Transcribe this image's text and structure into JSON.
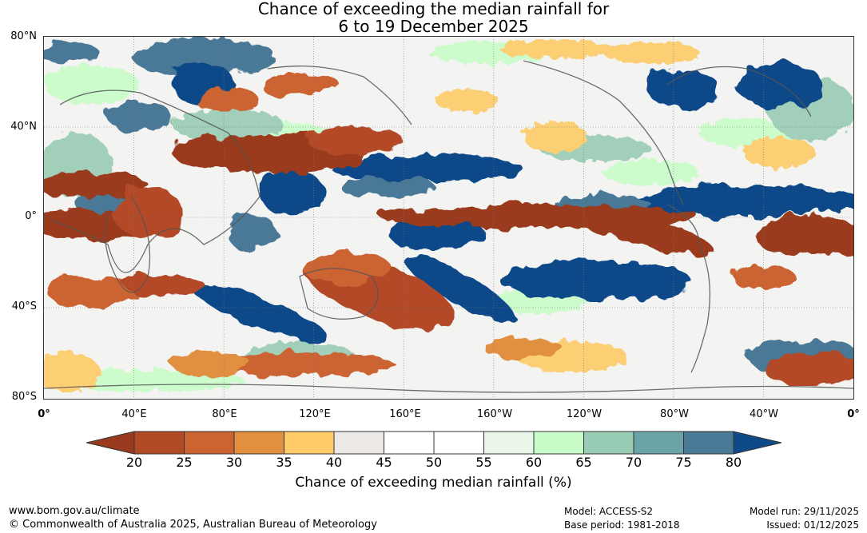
{
  "title_line1": "Chance of exceeding the median rainfall for",
  "title_line2": "6 to 19 December 2025",
  "lat_labels": [
    "80°N",
    "40°N",
    "0°",
    "40°S",
    "80°S"
  ],
  "lon_labels": [
    "0°",
    "40°E",
    "80°E",
    "120°E",
    "160°E",
    "160°W",
    "120°W",
    "80°W",
    "40°W",
    "0°"
  ],
  "colorbar": {
    "ticks": [
      "20",
      "25",
      "30",
      "35",
      "40",
      "45",
      "50",
      "55",
      "60",
      "65",
      "70",
      "75",
      "80"
    ],
    "colors": [
      "#993a1e",
      "#b34a26",
      "#cc6331",
      "#e0903f",
      "#fdcc68",
      "#ece9e6",
      "#ffffff",
      "#ffffff",
      "#e9f6e9",
      "#c8fcc8",
      "#99ccb5",
      "#6aa3a8",
      "#4a7996",
      "#0f4a88"
    ],
    "label": "Chance of exceeding median rainfall (%)"
  },
  "footer": {
    "url": "www.bom.gov.au/climate",
    "copyright": "© Commonwealth of Australia 2025, Australian Bureau of Meteorology",
    "model": "Model: ACCESS-S2",
    "base_period": "Base period: 1981-2018",
    "model_run": "Model run: 29/11/2025",
    "issued": "Issued: 01/12/2025"
  }
}
